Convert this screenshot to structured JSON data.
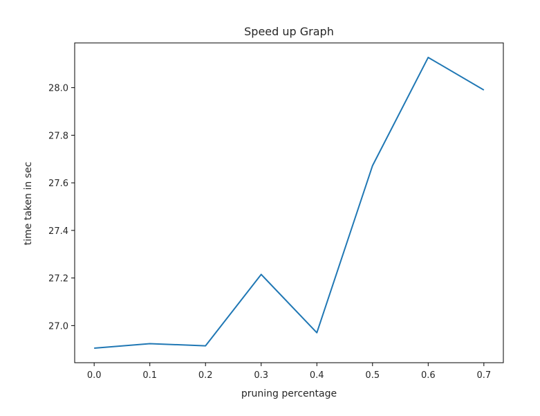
{
  "chart_data": {
    "type": "line",
    "title": "Speed up Graph",
    "xlabel": "pruning percentage",
    "ylabel": "time taken in sec",
    "x": [
      0.0,
      0.1,
      0.2,
      0.3,
      0.4,
      0.5,
      0.6,
      0.7
    ],
    "series": [
      {
        "values": [
          26.905,
          26.924,
          26.915,
          27.215,
          26.97,
          27.672,
          28.127,
          27.99
        ],
        "color": "#1f77b4"
      }
    ],
    "xlim": [
      -0.035,
      0.735
    ],
    "ylim": [
      26.844,
      28.188
    ],
    "x_ticks": [
      "0.0",
      "0.1",
      "0.2",
      "0.3",
      "0.4",
      "0.5",
      "0.6",
      "0.7"
    ],
    "y_ticks": [
      "27.0",
      "27.2",
      "27.4",
      "27.6",
      "27.8",
      "28.0"
    ],
    "grid": false,
    "legend": "none"
  }
}
